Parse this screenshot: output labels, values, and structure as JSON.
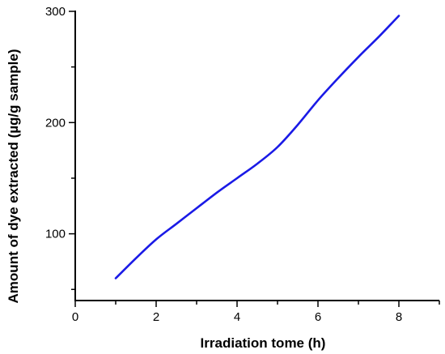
{
  "chart_data": {
    "type": "line",
    "title": "",
    "xlabel": "Irradiation tome (h)",
    "ylabel": "Amount of dye extracted (µg/g sample)",
    "xlim": [
      0,
      9
    ],
    "ylim": [
      40,
      300
    ],
    "x_ticks": [
      0,
      2,
      4,
      6,
      8
    ],
    "y_ticks": [
      100,
      200,
      300
    ],
    "grid": false,
    "legend": "none",
    "series": [
      {
        "color": "#1a1ae6",
        "x": [
          1,
          1.5,
          2,
          2.5,
          3,
          3.5,
          4,
          4.5,
          5,
          5.5,
          6,
          6.5,
          7,
          7.5,
          8
        ],
        "y": [
          60,
          78,
          95,
          109,
          123,
          137,
          150,
          163,
          178,
          198,
          220,
          240,
          259,
          277,
          296
        ]
      }
    ]
  }
}
